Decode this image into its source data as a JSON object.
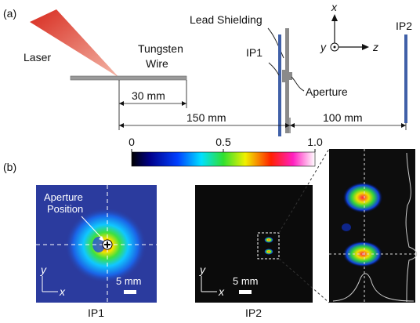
{
  "panel_a": {
    "label": "(a)",
    "laser": "Laser",
    "wire": [
      "Tungsten",
      "Wire"
    ],
    "shielding": "Lead Shielding",
    "ip1": "IP1",
    "aperture": "Aperture",
    "ip2": "IP2",
    "axes": {
      "x": "x",
      "y": "y",
      "z": "z"
    },
    "dimensions": [
      "30 mm",
      "150 mm",
      "100 mm"
    ]
  },
  "panel_b": {
    "label": "(b)",
    "colorbar": {
      "lim": [
        0,
        1
      ],
      "ticks": [
        0,
        0.5,
        {
          "value": 1,
          "label": "1.0"
        }
      ]
    },
    "ip1_image": {
      "annotation": [
        "Aperture",
        "Position"
      ],
      "y_axis": "y",
      "x_axis": "x",
      "scale": "5 mm",
      "caption": "IP1"
    },
    "ip2_image": {
      "y_axis": "y",
      "x_axis": "x",
      "scale": "5 mm",
      "caption": "IP2"
    }
  }
}
